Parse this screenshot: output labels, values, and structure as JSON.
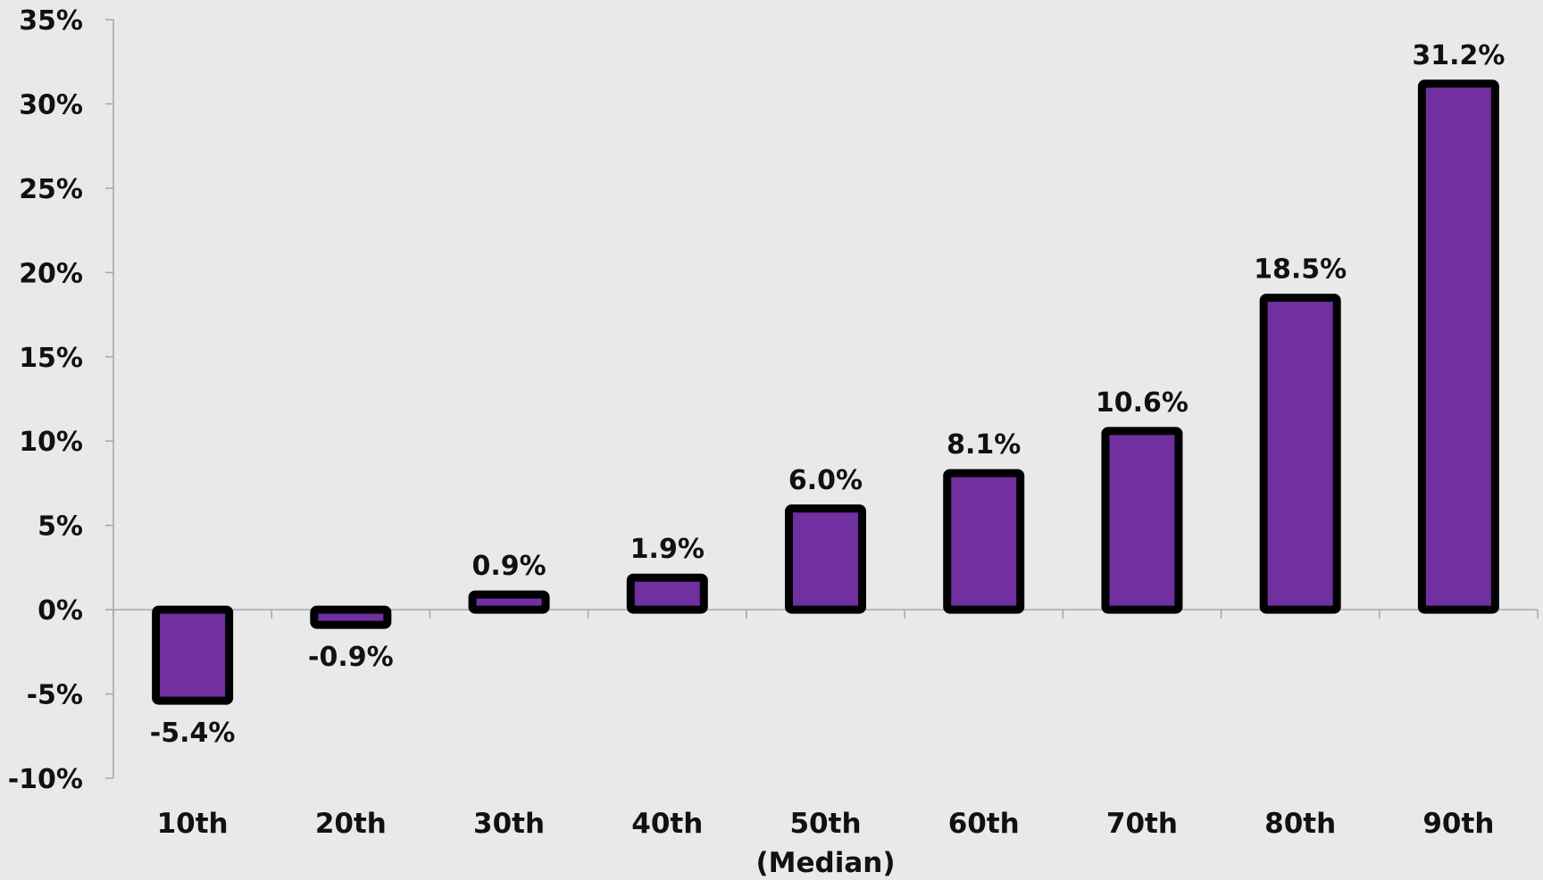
{
  "chart_data": {
    "type": "bar",
    "categories": [
      "10th",
      "20th",
      "30th",
      "40th",
      "50th",
      "60th",
      "70th",
      "80th",
      "90th"
    ],
    "category_sublabels": [
      "",
      "",
      "",
      "",
      "(Median)",
      "",
      "",
      "",
      ""
    ],
    "values": [
      -5.4,
      -0.9,
      0.9,
      1.9,
      6.0,
      8.1,
      10.6,
      18.5,
      31.2
    ],
    "data_labels": [
      "-5.4%",
      "-0.9%",
      "0.9%",
      "1.9%",
      "6.0%",
      "8.1%",
      "10.6%",
      "18.5%",
      "31.2%"
    ],
    "yticks": [
      -10,
      -5,
      0,
      5,
      10,
      15,
      20,
      25,
      30,
      35
    ],
    "ytick_labels": [
      "-10%",
      "-5%",
      "0%",
      "5%",
      "10%",
      "15%",
      "20%",
      "25%",
      "30%",
      "35%"
    ],
    "ylim": [
      -10,
      35
    ],
    "grid": false,
    "legend": "none",
    "colors": {
      "bar_fill": "#7030a0",
      "bar_stroke": "#000000",
      "axis": "#a6a6a6",
      "background": "#e9e9e9"
    }
  }
}
